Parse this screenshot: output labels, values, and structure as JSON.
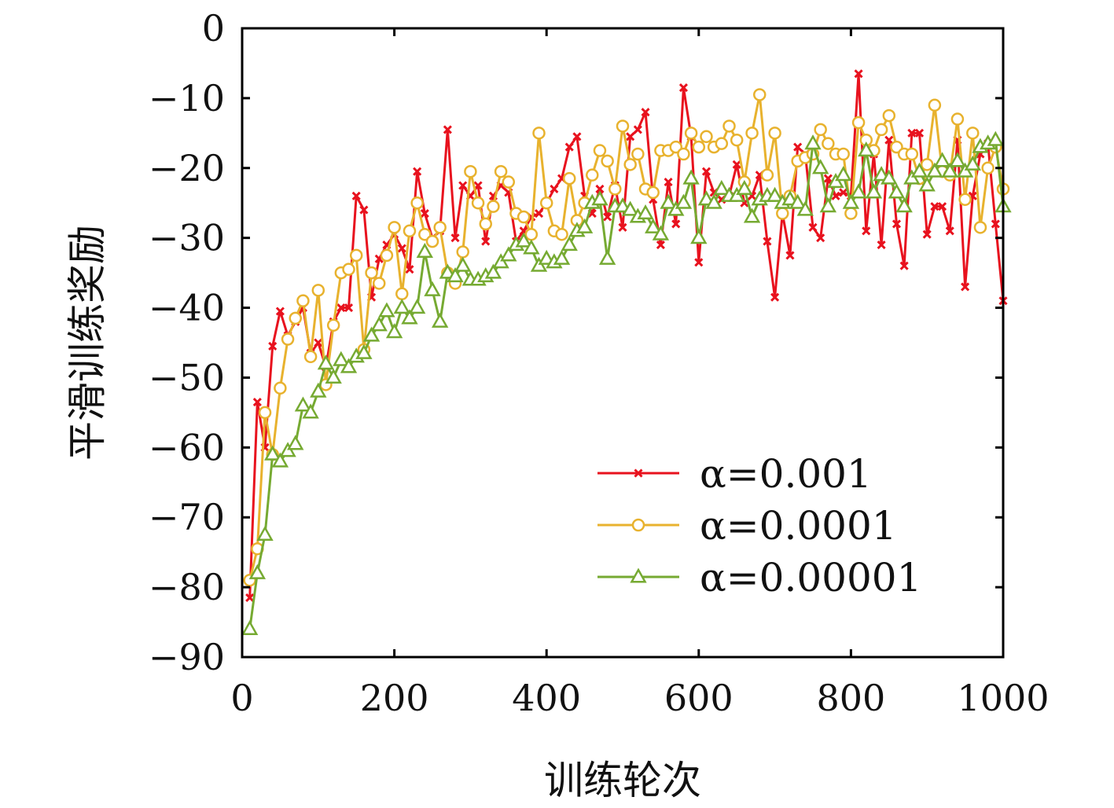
{
  "chart_data": {
    "type": "line",
    "xlabel": "训练轮次",
    "ylabel": "平滑训练奖励",
    "xlim": [
      0,
      1000
    ],
    "ylim": [
      -90,
      0
    ],
    "xticks": [
      0,
      200,
      400,
      600,
      800,
      1000
    ],
    "xtick_labels": [
      "0",
      "200",
      "400",
      "600",
      "800",
      "1000"
    ],
    "yticks": [
      0,
      -10,
      -20,
      -30,
      -40,
      -50,
      -60,
      -70,
      -80,
      -90
    ],
    "ytick_labels": [
      "0",
      "−10",
      "−20",
      "−30",
      "−40",
      "−50",
      "−60",
      "−70",
      "−80",
      "−90"
    ],
    "grid": false,
    "legend_position": "lower-right",
    "x": [
      10,
      20,
      30,
      40,
      50,
      60,
      70,
      80,
      90,
      100,
      110,
      120,
      130,
      140,
      150,
      160,
      170,
      180,
      190,
      200,
      210,
      220,
      230,
      240,
      250,
      260,
      270,
      280,
      290,
      300,
      310,
      320,
      330,
      340,
      350,
      360,
      370,
      380,
      390,
      400,
      410,
      420,
      430,
      440,
      450,
      460,
      470,
      480,
      490,
      500,
      510,
      520,
      530,
      540,
      550,
      560,
      570,
      580,
      590,
      600,
      610,
      620,
      630,
      640,
      650,
      660,
      670,
      680,
      690,
      700,
      710,
      720,
      730,
      740,
      750,
      760,
      770,
      780,
      790,
      800,
      810,
      820,
      830,
      840,
      850,
      860,
      870,
      880,
      890,
      900,
      910,
      920,
      930,
      940,
      950,
      960,
      970,
      980,
      990,
      1000
    ],
    "series": [
      {
        "name": "α=0.001",
        "color": "#e8121e",
        "marker": "x",
        "values": [
          -81.5,
          -53.5,
          -60,
          -45.5,
          -40.5,
          -44,
          -42,
          -40,
          -46.5,
          -45,
          -48.5,
          -42,
          -40,
          -40,
          -24,
          -26,
          -38.5,
          -33,
          -31,
          -29.5,
          -31.5,
          -34.5,
          -20.5,
          -26.5,
          -30,
          -29,
          -14.5,
          -30,
          -22.5,
          -24,
          -22.5,
          -30.5,
          -24,
          -22.5,
          -23.5,
          -30.5,
          -29,
          -27,
          -26.5,
          -25,
          -23,
          -21.5,
          -17,
          -15.5,
          -24,
          -26.5,
          -23,
          -27,
          -22.5,
          -28.5,
          -15.5,
          -14.5,
          -12,
          -24.5,
          -31,
          -22,
          -28,
          -8.5,
          -15.5,
          -33.5,
          -20.5,
          -23.5,
          -24.5,
          -24,
          -19.5,
          -25,
          -24,
          -21,
          -30.5,
          -38.5,
          -26.5,
          -32.5,
          -17,
          -18,
          -28.5,
          -30,
          -21.5,
          -24,
          -23.5,
          -24,
          -6.5,
          -29,
          -18,
          -31,
          -16,
          -28,
          -34,
          -15,
          -15,
          -29.5,
          -25.5,
          -25.5,
          -29,
          -16,
          -37,
          -24,
          -18,
          -16.5,
          -28,
          -39
        ]
      },
      {
        "name": "α=0.0001",
        "color": "#e8b22e",
        "marker": "o",
        "values": [
          -79,
          -74.5,
          -55,
          -61,
          -51.5,
          -44.5,
          -41.5,
          -39,
          -47,
          -37.5,
          -51,
          -42.5,
          -35,
          -34.5,
          -32.5,
          -46,
          -35,
          -36.5,
          -32.5,
          -28.5,
          -38,
          -29,
          -25,
          -29.5,
          -30.5,
          -28.5,
          -35,
          -36.5,
          -32,
          -20.5,
          -25,
          -28,
          -25.5,
          -20.5,
          -22,
          -26.5,
          -27,
          -29.5,
          -15,
          -25,
          -29,
          -29.5,
          -21.5,
          -27.5,
          -25,
          -21,
          -17.5,
          -19,
          -23,
          -14,
          -19.5,
          -18,
          -23,
          -23.5,
          -17.5,
          -17.5,
          -17,
          -18,
          -15,
          -17,
          -15.5,
          -17,
          -16.5,
          -14,
          -16,
          -22,
          -15,
          -9.5,
          -21,
          -15,
          -26.5,
          -24,
          -19,
          -18.5,
          -18,
          -14.5,
          -16.5,
          -18,
          -18,
          -26.5,
          -13.5,
          -16,
          -17.5,
          -14.5,
          -12.5,
          -17,
          -18,
          -18,
          -21.5,
          -19.5,
          -11,
          -20.5,
          -21,
          -13,
          -24.5,
          -15,
          -28.5,
          -20,
          -17,
          -23
        ]
      },
      {
        "name": "α=0.00001",
        "color": "#76aa32",
        "marker": "triangle",
        "values": [
          -86,
          -78,
          -72.5,
          -61,
          -62,
          -60.5,
          -59.5,
          -54,
          -55,
          -52,
          -48,
          -50,
          -47.5,
          -48.5,
          -47,
          -46.5,
          -44,
          -42.5,
          -40.5,
          -43.5,
          -40,
          -41.5,
          -40,
          -32,
          -37.5,
          -42,
          -35,
          -35.5,
          -34,
          -36,
          -36,
          -35.5,
          -35,
          -33.5,
          -32.5,
          -31,
          -30.5,
          -31.5,
          -34,
          -33,
          -33.5,
          -33,
          -31,
          -29,
          -28.5,
          -25,
          -24.5,
          -33,
          -25.5,
          -25.5,
          -26,
          -27,
          -26.5,
          -28.5,
          -29.5,
          -25,
          -26,
          -25,
          -21.5,
          -30,
          -24.5,
          -25,
          -23,
          -24,
          -24,
          -23,
          -27,
          -24.5,
          -24,
          -24,
          -25,
          -24.5,
          -25,
          -26,
          -16.5,
          -20,
          -25.5,
          -22,
          -21,
          -25,
          -23.5,
          -17.5,
          -23.5,
          -21,
          -21.5,
          -23.5,
          -25.5,
          -21.5,
          -20.5,
          -22.5,
          -20.5,
          -19,
          -20.5,
          -19,
          -20.5,
          -19.5,
          -17,
          -16.5,
          -16,
          -25.5
        ]
      }
    ]
  }
}
